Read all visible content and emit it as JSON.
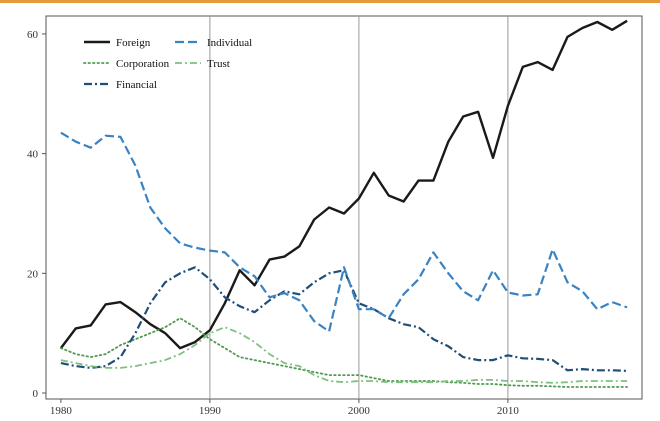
{
  "chart_data": {
    "type": "line",
    "title": "",
    "xlabel": "",
    "ylabel": "",
    "xlim": [
      1979,
      2019
    ],
    "ylim": [
      -1,
      63
    ],
    "x_ticks": [
      1980,
      1990,
      2000,
      2010
    ],
    "y_ticks": [
      0,
      20,
      40,
      60
    ],
    "x_tick_labels": [
      "1980",
      "1990",
      "2000",
      "2010"
    ],
    "y_tick_labels": [
      "0",
      "20",
      "40",
      "60"
    ],
    "vlines": [
      1990,
      2000,
      2010
    ],
    "grid": false,
    "legend_position": "top-left",
    "series": [
      {
        "name": "Foreign",
        "style": "solid",
        "color": "#1a1a1a",
        "x": [
          1980,
          1981,
          1982,
          1983,
          1984,
          1985,
          1986,
          1987,
          1988,
          1989,
          1990,
          1991,
          1992,
          1993,
          1994,
          1995,
          1996,
          1997,
          1998,
          1999,
          2000,
          2001,
          2002,
          2003,
          2004,
          2005,
          2006,
          2007,
          2008,
          2009,
          2010,
          2011,
          2012,
          2013,
          2014,
          2015,
          2016,
          2017,
          2018
        ],
        "y": [
          7.5,
          10.8,
          11.3,
          14.8,
          15.2,
          13.5,
          11.5,
          10,
          7.5,
          8.5,
          10.5,
          15,
          20.5,
          18,
          22.3,
          22.8,
          24.5,
          29,
          31,
          30,
          32.5,
          36.8,
          33,
          32,
          35.5,
          35.5,
          42,
          46.2,
          47,
          39.3,
          48,
          54.5,
          55.3,
          54,
          59.5,
          61,
          62,
          60.7,
          62.2
        ]
      },
      {
        "name": "Corporation",
        "style": "dotted",
        "color": "#4f9a4f",
        "x": [
          1980,
          1981,
          1982,
          1983,
          1984,
          1985,
          1986,
          1987,
          1988,
          1989,
          1990,
          1991,
          1992,
          1993,
          1994,
          1995,
          1996,
          1997,
          1998,
          1999,
          2000,
          2001,
          2002,
          2003,
          2004,
          2005,
          2006,
          2007,
          2008,
          2009,
          2010,
          2011,
          2012,
          2013,
          2014,
          2015,
          2016,
          2017,
          2018
        ],
        "y": [
          7.5,
          6.5,
          6,
          6.5,
          8,
          9,
          10,
          11,
          12.5,
          11,
          9,
          7.5,
          6,
          5.5,
          5,
          4.5,
          4,
          3.5,
          3,
          3,
          3,
          2.5,
          2,
          2,
          2,
          2,
          1.8,
          1.7,
          1.5,
          1.5,
          1.3,
          1.2,
          1.2,
          1.1,
          1,
          1,
          1,
          1,
          1
        ]
      },
      {
        "name": "Financial",
        "style": "dashdot",
        "color": "#1f4e79",
        "x": [
          1980,
          1981,
          1982,
          1983,
          1984,
          1985,
          1986,
          1987,
          1988,
          1989,
          1990,
          1991,
          1992,
          1993,
          1994,
          1995,
          1996,
          1997,
          1998,
          1999,
          2000,
          2001,
          2002,
          2003,
          2004,
          2005,
          2006,
          2007,
          2008,
          2009,
          2010,
          2011,
          2012,
          2013,
          2014,
          2015,
          2016,
          2017,
          2018
        ],
        "y": [
          5,
          4.5,
          4.2,
          4.5,
          6,
          10,
          15,
          18.5,
          20,
          21,
          19,
          16,
          14.5,
          13.5,
          15.5,
          17,
          16.5,
          18.5,
          20,
          20.5,
          15,
          14,
          12.5,
          11.5,
          11,
          9,
          7.8,
          6,
          5.5,
          5.5,
          6.3,
          5.8,
          5.7,
          5.5,
          3.8,
          4,
          3.8,
          3.8,
          3.7
        ]
      },
      {
        "name": "Individual",
        "style": "dashed",
        "color": "#3a83c3",
        "x": [
          1980,
          1981,
          1982,
          1983,
          1984,
          1985,
          1986,
          1987,
          1988,
          1989,
          1990,
          1991,
          1992,
          1993,
          1994,
          1995,
          1996,
          1997,
          1998,
          1999,
          2000,
          2001,
          2002,
          2003,
          2004,
          2005,
          2006,
          2007,
          2008,
          2009,
          2010,
          2011,
          2012,
          2013,
          2014,
          2015,
          2016,
          2017,
          2018
        ],
        "y": [
          43.5,
          42,
          41,
          43,
          42.8,
          38,
          31,
          27.5,
          25,
          24.3,
          23.8,
          23.5,
          21,
          19.5,
          16,
          16.7,
          15.5,
          12,
          10.3,
          21,
          14,
          14,
          12.5,
          16.5,
          19,
          23.5,
          20,
          17,
          15.5,
          20.5,
          16.8,
          16.3,
          16.5,
          24,
          18.5,
          17,
          14,
          15.2,
          14.3
        ]
      },
      {
        "name": "Trust",
        "style": "dashdot-long",
        "color": "#7fc07f",
        "x": [
          1980,
          1981,
          1982,
          1983,
          1984,
          1985,
          1986,
          1987,
          1988,
          1989,
          1990,
          1991,
          1992,
          1993,
          1994,
          1995,
          1996,
          1997,
          1998,
          1999,
          2000,
          2001,
          2002,
          2003,
          2004,
          2005,
          2006,
          2007,
          2008,
          2009,
          2010,
          2011,
          2012,
          2013,
          2014,
          2015,
          2016,
          2017,
          2018
        ],
        "y": [
          5.5,
          5,
          4.5,
          4.2,
          4.2,
          4.5,
          5,
          5.5,
          6.5,
          8,
          10,
          11,
          10,
          8.5,
          6.5,
          5,
          4.5,
          3,
          2,
          1.8,
          2,
          2,
          1.8,
          1.8,
          1.8,
          1.8,
          2,
          2,
          2.2,
          2.2,
          2,
          2,
          1.8,
          1.7,
          1.8,
          2,
          2,
          2,
          2
        ]
      }
    ]
  }
}
